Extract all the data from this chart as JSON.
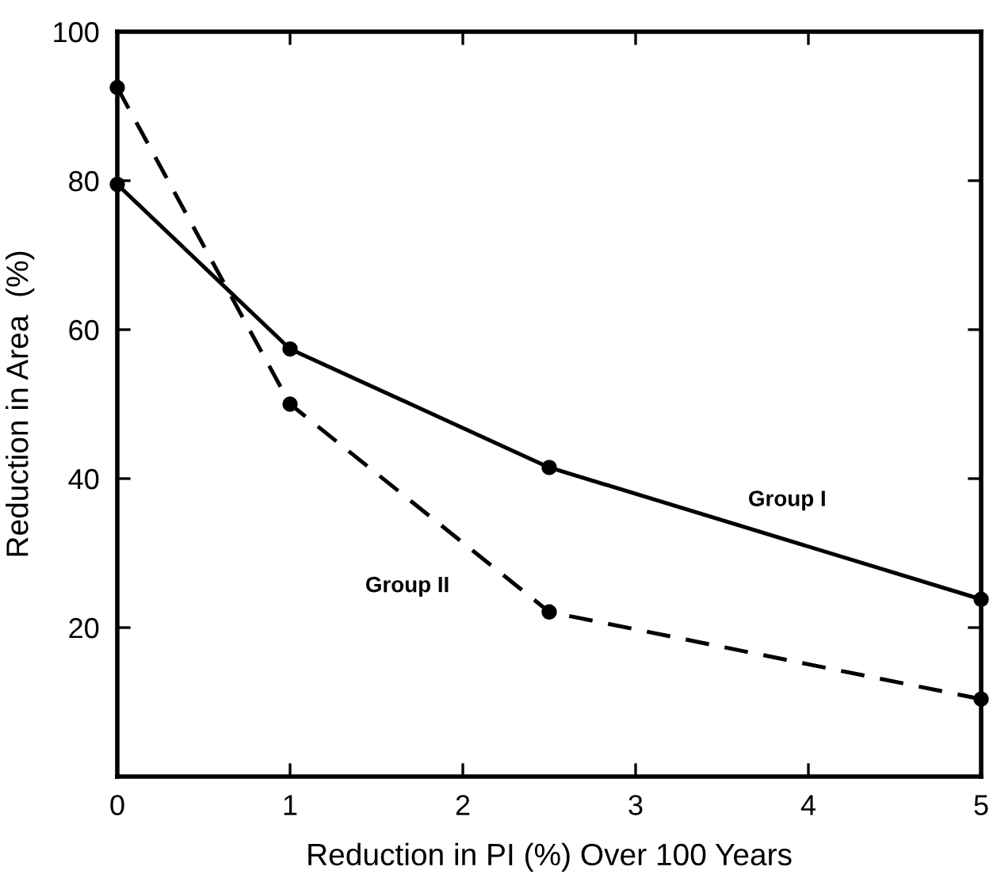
{
  "chart_data": {
    "type": "line",
    "xlabel": "Reduction in PI (%) Over 100 Years",
    "ylabel": "Reduction in Area  (%)",
    "xlim": [
      0,
      5
    ],
    "xticks": [
      0,
      1,
      2,
      3,
      4,
      5
    ],
    "ylim": [
      0,
      100
    ],
    "yticks": [
      20,
      40,
      60,
      80,
      100
    ],
    "grid": false,
    "legend": false,
    "marker": "circle",
    "series": [
      {
        "name": "Group I",
        "color": "#000000",
        "line_style": "solid",
        "x": [
          0,
          1,
          2.5,
          5
        ],
        "values": [
          79.5,
          57.4,
          41.5,
          23.8
        ]
      },
      {
        "name": "Group II",
        "color": "#000000",
        "line_style": "dashed",
        "x": [
          0,
          1,
          2.5,
          5
        ],
        "values": [
          92.5,
          50,
          22.1,
          10.4
        ]
      }
    ]
  }
}
